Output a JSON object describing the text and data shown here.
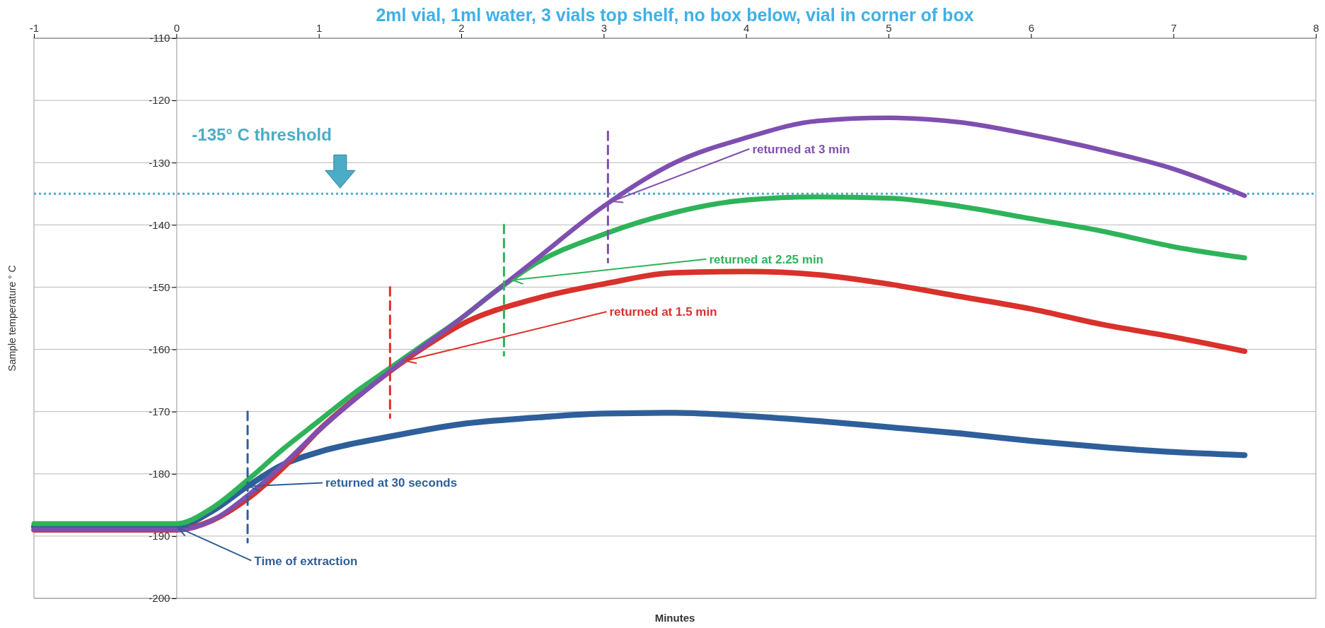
{
  "chart_data": {
    "type": "line",
    "title": "2ml vial, 1ml water, 3 vials top shelf, no box below, vial in corner of box",
    "xlabel": "Minutes",
    "ylabel": "Sample temperature ° C",
    "xlim": [
      -1,
      8
    ],
    "xticks": [
      -1,
      0,
      1,
      2,
      3,
      4,
      5,
      6,
      7,
      8
    ],
    "ylim": [
      -200,
      -110
    ],
    "yticks": [
      -200,
      -190,
      -180,
      -170,
      -160,
      -150,
      -140,
      -130,
      -120,
      -110
    ],
    "grid": "y",
    "series": [
      {
        "color": "#2e5f9a",
        "x": [
          -1,
          0,
          0.25,
          0.5,
          0.75,
          1,
          1.5,
          2,
          2.5,
          3,
          3.5,
          4,
          4.5,
          5,
          5.5,
          6,
          6.5,
          7,
          7.5
        ],
        "values": [
          -188.5,
          -188.5,
          -186,
          -182,
          -178.5,
          -176.5,
          -174,
          -172,
          -171,
          -170.3,
          -170.2,
          -170.7,
          -171.5,
          -172.5,
          -173.5,
          -174.7,
          -175.7,
          -176.5,
          -177
        ]
      },
      {
        "color": "#d9312b",
        "x": [
          -1,
          0,
          0.25,
          0.5,
          0.75,
          1,
          1.25,
          1.5,
          1.75,
          2,
          2.5,
          3,
          3.5,
          4,
          4.5,
          5,
          5.5,
          6,
          6.5,
          7,
          7.5
        ],
        "values": [
          -189,
          -189,
          -187.5,
          -184,
          -179,
          -173,
          -168,
          -163.5,
          -159.5,
          -156,
          -152,
          -149.5,
          -147.7,
          -147.5,
          -148,
          -149.5,
          -151.5,
          -153.5,
          -156,
          -158,
          -160.3
        ]
      },
      {
        "color": "#2fb35a",
        "x": [
          -1,
          0,
          0.25,
          0.5,
          0.75,
          1,
          1.25,
          1.5,
          1.75,
          2,
          2.25,
          2.5,
          3,
          3.5,
          4,
          4.5,
          5,
          5.5,
          6,
          6.5,
          7,
          7.5
        ],
        "values": [
          -188,
          -188,
          -185.5,
          -181,
          -176,
          -171.5,
          -167,
          -163,
          -159,
          -155,
          -150.5,
          -146.5,
          -141.5,
          -138,
          -136,
          -135.5,
          -135.7,
          -137,
          -139,
          -141,
          -143.5,
          -145.3
        ]
      },
      {
        "color": "#7f4fb0",
        "x": [
          -1,
          0,
          0.25,
          0.5,
          0.75,
          1,
          1.5,
          2,
          2.25,
          2.5,
          3,
          3.5,
          4,
          4.5,
          5,
          5.5,
          6,
          6.5,
          7,
          7.5
        ],
        "values": [
          -189,
          -189,
          -187.5,
          -183.5,
          -178.5,
          -173,
          -163.5,
          -155,
          -150.5,
          -146,
          -137,
          -130,
          -126,
          -123.3,
          -122.8,
          -123.5,
          -125.5,
          -128,
          -131,
          -135.3
        ]
      },
      {
        "color": "#2e5f9a",
        "line_style": "dashed",
        "x": [
          0.5,
          0.5
        ],
        "values": [
          -170,
          -191
        ]
      },
      {
        "color": "#d9312b",
        "line_style": "dashed",
        "x": [
          1.5,
          1.5
        ],
        "values": [
          -150,
          -171
        ]
      },
      {
        "color": "#2fb35a",
        "line_style": "dashed",
        "x": [
          2.3,
          2.3
        ],
        "values": [
          -140,
          -161
        ]
      },
      {
        "color": "#7f4fb0",
        "line_style": "dashed",
        "x": [
          3.03,
          3.03
        ],
        "values": [
          -125,
          -146
        ]
      }
    ],
    "ref_lines": [
      {
        "axis": "y",
        "value": -135,
        "label": "-135° C threshold",
        "color": "#4bacc6",
        "line_style": "dotted"
      }
    ],
    "annotations": [
      {
        "text": "returned at 3 min",
        "x": 3.05,
        "y": -136.3
      },
      {
        "text": "returned at 2.25 min",
        "x": 2.35,
        "y": -148.9
      },
      {
        "text": "returned at 1.5 min",
        "x": 1.6,
        "y": -161.9
      },
      {
        "text": "returned at 30 seconds",
        "x": 0.5,
        "y": -182
      },
      {
        "text": "Time of extraction",
        "x": 0,
        "y": -188.5
      }
    ]
  }
}
